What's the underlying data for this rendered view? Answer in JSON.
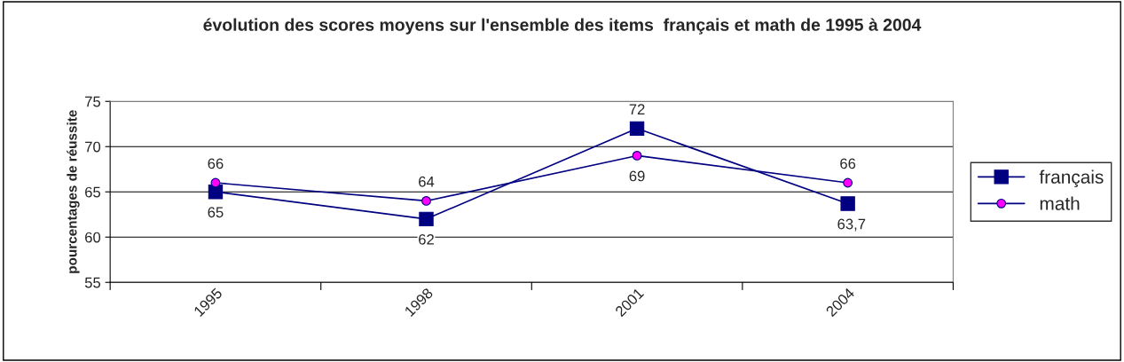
{
  "chart_data": {
    "type": "line",
    "title": "évolution des scores moyens sur l'ensemble des items  français et math de 1995 à 2004",
    "ylabel": "pourcentages de réussite",
    "categories": [
      "1995",
      "1998",
      "2001",
      "2004"
    ],
    "series": [
      {
        "name": "français",
        "color": "#000080",
        "marker": "square",
        "values": [
          65,
          62,
          72,
          63.7
        ],
        "value_labels": [
          "65",
          "62",
          "72",
          "63,7"
        ]
      },
      {
        "name": "math",
        "color": "#000080",
        "colors": [
          "#ff00ff",
          "#ff00ff",
          "#ff00ff",
          "#ff00ff"
        ],
        "marker": "circle",
        "values": [
          66,
          64,
          69,
          66
        ],
        "value_labels": [
          "66",
          "64",
          "69",
          "66"
        ]
      }
    ],
    "ylim": [
      55,
      75
    ],
    "yticks": [
      55,
      60,
      65,
      70,
      75
    ],
    "grid": "y",
    "legend": "right",
    "line_style": "solid"
  }
}
